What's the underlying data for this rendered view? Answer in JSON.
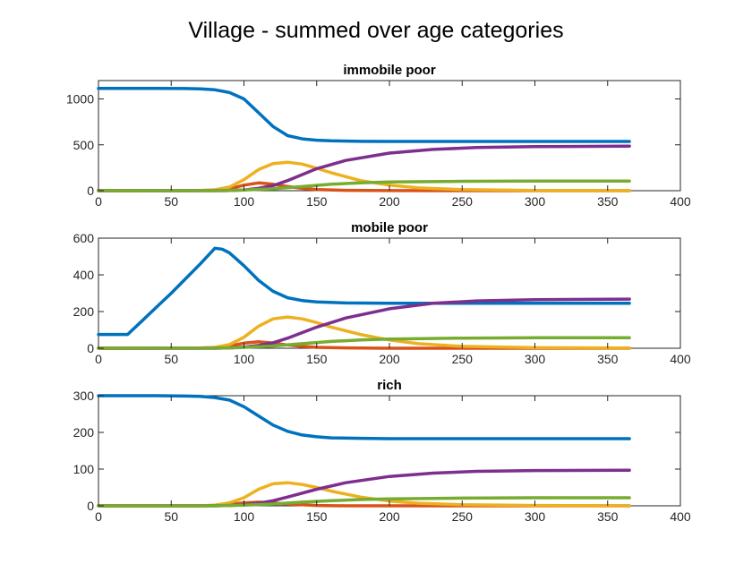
{
  "figure_title": "Village - summed over age categories",
  "colors": {
    "blue": "#0072BD",
    "orange": "#D95319",
    "yellow": "#EDB120",
    "purple": "#7E2F8E",
    "green": "#77AC30"
  },
  "chart_data": [
    {
      "type": "line",
      "title": "immobile poor",
      "xlim": [
        0,
        400
      ],
      "ylim": [
        0,
        1200
      ],
      "xticks": [
        0,
        50,
        100,
        150,
        200,
        250,
        300,
        350,
        400
      ],
      "yticks": [
        0,
        500,
        1000
      ],
      "grid": false,
      "series": [
        {
          "color": "#0072BD",
          "x": [
            0,
            20,
            40,
            60,
            70,
            80,
            90,
            100,
            110,
            120,
            130,
            140,
            150,
            160,
            180,
            200,
            250,
            300,
            365
          ],
          "y": [
            1115,
            1115,
            1115,
            1113,
            1110,
            1100,
            1070,
            1000,
            850,
            700,
            600,
            565,
            550,
            543,
            538,
            537,
            537,
            537,
            537
          ]
        },
        {
          "color": "#D95319",
          "x": [
            0,
            70,
            80,
            90,
            100,
            110,
            120,
            130,
            140,
            150,
            170,
            200,
            250,
            300,
            365
          ],
          "y": [
            0,
            1,
            5,
            20,
            60,
            85,
            70,
            45,
            25,
            12,
            4,
            1,
            0,
            0,
            0
          ]
        },
        {
          "color": "#EDB120",
          "x": [
            0,
            70,
            80,
            90,
            100,
            110,
            120,
            130,
            140,
            150,
            160,
            180,
            200,
            220,
            250,
            300,
            365
          ],
          "y": [
            0,
            2,
            10,
            40,
            120,
            230,
            295,
            310,
            290,
            245,
            195,
            110,
            60,
            30,
            12,
            3,
            1
          ]
        },
        {
          "color": "#7E2F8E",
          "x": [
            0,
            80,
            90,
            100,
            110,
            120,
            130,
            150,
            170,
            200,
            230,
            260,
            300,
            365
          ],
          "y": [
            0,
            0,
            2,
            8,
            25,
            55,
            110,
            240,
            330,
            410,
            450,
            470,
            480,
            485
          ]
        },
        {
          "color": "#77AC30",
          "x": [
            0,
            80,
            90,
            100,
            120,
            140,
            160,
            180,
            200,
            250,
            300,
            365
          ],
          "y": [
            0,
            0,
            2,
            8,
            20,
            45,
            70,
            85,
            95,
            102,
            105,
            105
          ]
        }
      ]
    },
    {
      "type": "line",
      "title": "mobile poor",
      "xlim": [
        0,
        400
      ],
      "ylim": [
        0,
        600
      ],
      "xticks": [
        0,
        50,
        100,
        150,
        200,
        250,
        300,
        350,
        400
      ],
      "yticks": [
        0,
        200,
        400,
        600
      ],
      "grid": false,
      "series": [
        {
          "color": "#0072BD",
          "x": [
            0,
            20,
            30,
            40,
            50,
            60,
            70,
            80,
            85,
            90,
            100,
            110,
            120,
            130,
            140,
            150,
            170,
            200,
            250,
            300,
            365
          ],
          "y": [
            75,
            75,
            150,
            225,
            300,
            380,
            460,
            545,
            540,
            520,
            450,
            370,
            310,
            275,
            260,
            252,
            247,
            245,
            245,
            245,
            245
          ]
        },
        {
          "color": "#D95319",
          "x": [
            0,
            70,
            80,
            90,
            100,
            110,
            120,
            130,
            140,
            150,
            170,
            200,
            365
          ],
          "y": [
            0,
            1,
            4,
            12,
            28,
            35,
            28,
            18,
            10,
            5,
            2,
            0,
            0
          ]
        },
        {
          "color": "#EDB120",
          "x": [
            0,
            70,
            80,
            90,
            100,
            110,
            120,
            130,
            140,
            150,
            160,
            180,
            200,
            220,
            250,
            300,
            365
          ],
          "y": [
            0,
            1,
            5,
            20,
            60,
            120,
            160,
            170,
            160,
            140,
            115,
            75,
            45,
            25,
            10,
            3,
            1
          ]
        },
        {
          "color": "#7E2F8E",
          "x": [
            0,
            80,
            90,
            100,
            110,
            120,
            130,
            150,
            170,
            200,
            230,
            260,
            300,
            365
          ],
          "y": [
            0,
            0,
            2,
            6,
            15,
            30,
            55,
            115,
            165,
            215,
            245,
            258,
            265,
            268
          ]
        },
        {
          "color": "#77AC30",
          "x": [
            0,
            80,
            90,
            100,
            120,
            140,
            160,
            180,
            200,
            250,
            300,
            365
          ],
          "y": [
            0,
            0,
            2,
            5,
            12,
            25,
            37,
            45,
            50,
            55,
            57,
            57
          ]
        }
      ]
    },
    {
      "type": "line",
      "title": "rich",
      "xlim": [
        0,
        400
      ],
      "ylim": [
        0,
        300
      ],
      "xticks": [
        0,
        50,
        100,
        150,
        200,
        250,
        300,
        350,
        400
      ],
      "yticks": [
        0,
        100,
        200,
        300
      ],
      "grid": false,
      "series": [
        {
          "color": "#0072BD",
          "x": [
            0,
            20,
            40,
            60,
            70,
            80,
            90,
            100,
            110,
            120,
            130,
            140,
            150,
            160,
            180,
            200,
            250,
            300,
            365
          ],
          "y": [
            300,
            300,
            300,
            299,
            298,
            295,
            288,
            270,
            245,
            220,
            203,
            193,
            188,
            185,
            184,
            183,
            183,
            183,
            183
          ]
        },
        {
          "color": "#D95319",
          "x": [
            0,
            70,
            80,
            90,
            100,
            110,
            120,
            130,
            140,
            150,
            170,
            200,
            365
          ],
          "y": [
            0,
            0,
            1,
            4,
            8,
            10,
            8,
            5,
            3,
            1,
            0,
            0,
            0
          ]
        },
        {
          "color": "#EDB120",
          "x": [
            0,
            70,
            80,
            90,
            100,
            110,
            120,
            130,
            140,
            150,
            160,
            180,
            200,
            220,
            250,
            300,
            365
          ],
          "y": [
            0,
            0,
            2,
            8,
            22,
            45,
            60,
            63,
            58,
            50,
            40,
            24,
            13,
            7,
            3,
            1,
            0
          ]
        },
        {
          "color": "#7E2F8E",
          "x": [
            0,
            80,
            90,
            100,
            110,
            120,
            130,
            150,
            170,
            200,
            230,
            260,
            300,
            365
          ],
          "y": [
            0,
            0,
            1,
            3,
            7,
            14,
            24,
            45,
            63,
            80,
            89,
            94,
            96,
            97
          ]
        },
        {
          "color": "#77AC30",
          "x": [
            0,
            80,
            90,
            100,
            120,
            140,
            160,
            180,
            200,
            250,
            300,
            365
          ],
          "y": [
            0,
            0,
            1,
            2,
            5,
            10,
            14,
            17,
            19,
            21,
            22,
            22
          ]
        }
      ]
    }
  ]
}
